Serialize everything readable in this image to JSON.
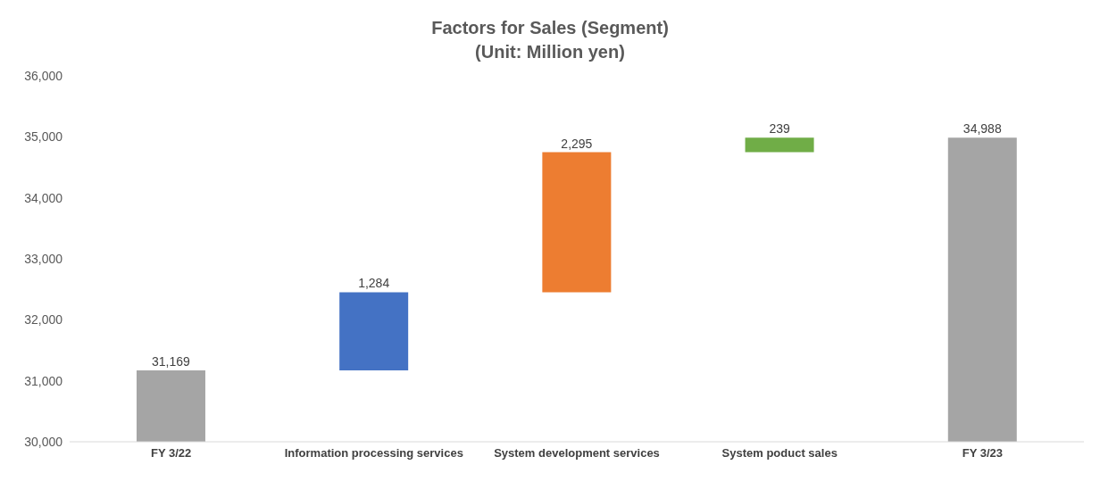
{
  "chart_data": {
    "type": "bar",
    "title": "Factors for Sales (Segment)",
    "subtitle": "(Unit: Million yen)",
    "categories": [
      "FY 3/22",
      "Information processing services",
      "System development services",
      "System poduct sales",
      "FY 3/23"
    ],
    "values": [
      31169,
      1284,
      2295,
      239,
      34988
    ],
    "value_labels": [
      "31,169",
      "1,284",
      "2,295",
      "239",
      "34,988"
    ],
    "base": [
      null,
      31169,
      32453,
      34748,
      null
    ],
    "colors": [
      "#a5a5a5",
      "#4472c4",
      "#ed7d31",
      "#70ad47",
      "#a5a5a5"
    ],
    "ylim": [
      30000,
      36000
    ],
    "yticks": [
      {
        "value": 30000,
        "label": "30,000"
      },
      {
        "value": 31000,
        "label": "31,000"
      },
      {
        "value": 32000,
        "label": "32,000"
      },
      {
        "value": 33000,
        "label": "33,000"
      },
      {
        "value": 34000,
        "label": "34,000"
      },
      {
        "value": 35000,
        "label": "35,000"
      },
      {
        "value": 36000,
        "label": "36,000"
      }
    ],
    "grid": false
  }
}
